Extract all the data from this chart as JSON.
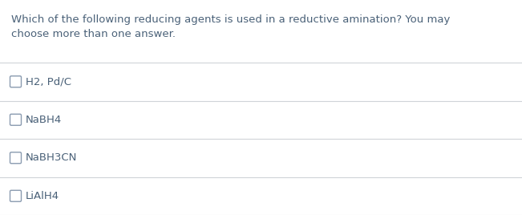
{
  "question_text_line1": "Which of the following reducing agents is used in a reductive amination? You may",
  "question_text_line2": "choose more than one answer.",
  "options": [
    "H2, Pd/C",
    "NaBH4",
    "NaBH3CN",
    "LiAlH4"
  ],
  "bg_color": "#ffffff",
  "text_color": "#4a6178",
  "line_color": "#d0d4d8",
  "question_fontsize": 9.5,
  "option_fontsize": 9.5,
  "fig_width": 6.51,
  "fig_height": 2.68,
  "dpi": 100
}
